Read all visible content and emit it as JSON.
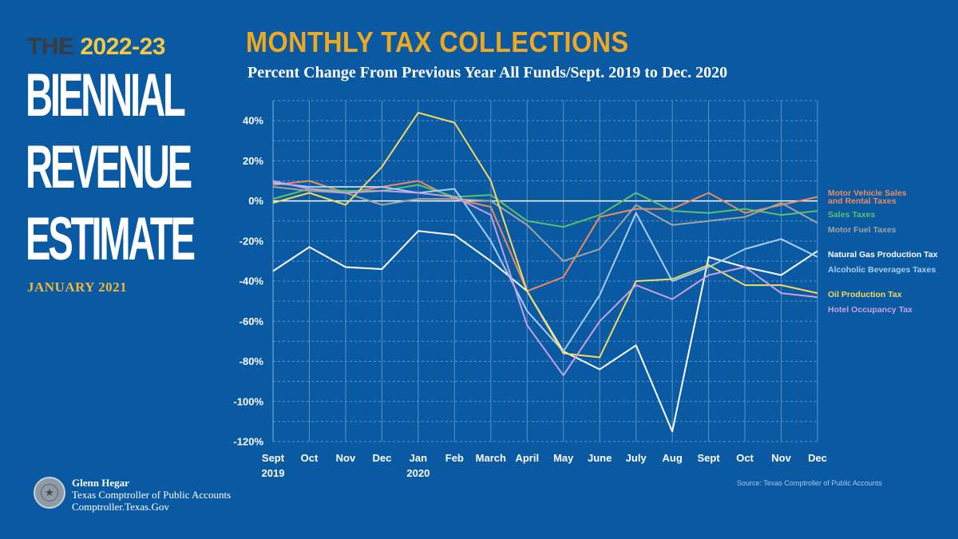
{
  "branding": {
    "the": "THE",
    "years": "2022-23",
    "lines": [
      "BIENNIAL",
      "REVENUE",
      "ESTIMATE"
    ],
    "date": "JANUARY 2021",
    "colors": {
      "years": "#f5c842",
      "date": "#f0b83a",
      "background": "#0a5aa3"
    }
  },
  "footer": {
    "name": "Glenn Hegar",
    "office": "Texas Comptroller of Public Accounts",
    "website": "Comptroller.Texas.Gov",
    "seal_icon": "texas-seal-icon"
  },
  "source": "Source: Texas Comptroller of Public Accounts",
  "chart_data": {
    "type": "line",
    "title": "MONTHLY TAX COLLECTIONS",
    "subtitle": "Percent Change From Previous Year All Funds/Sept. 2019 to Dec. 2020",
    "xlabel": "",
    "ylabel": "",
    "categories": [
      "Sept",
      "Oct",
      "Nov",
      "Dec",
      "Jan",
      "Feb",
      "March",
      "April",
      "May",
      "June",
      "July",
      "Aug",
      "Sept",
      "Oct",
      "Nov",
      "Dec"
    ],
    "year_labels": [
      {
        "index": 0,
        "label": "2019"
      },
      {
        "index": 4,
        "label": "2020"
      }
    ],
    "ylim": [
      -120,
      50
    ],
    "yticks": [
      40,
      20,
      0,
      -20,
      -40,
      -60,
      -80,
      -100,
      -120
    ],
    "ytick_labels": [
      "40%",
      "20%",
      "0%",
      "-20%",
      "-40%",
      "-60%",
      "-80%",
      "-100%",
      "-120%"
    ],
    "grid": true,
    "legend": "right",
    "series": [
      {
        "name": "Motor Vehicle Sales",
        "name2": "and Rental Taxes",
        "color": "#f08a5d",
        "values": [
          8,
          10,
          4,
          7,
          10,
          1,
          -3,
          -45,
          -38,
          -8,
          -4,
          -4,
          4,
          -6,
          -2,
          2
        ]
      },
      {
        "name": "Sales Taxes",
        "color": "#5fbf6a",
        "values": [
          1,
          6,
          5,
          5,
          8,
          2,
          3,
          -10,
          -13,
          -7,
          4,
          -5,
          -6,
          -4,
          -7,
          -5
        ]
      },
      {
        "name": "Motor Fuel Taxes",
        "color": "#a3a3a3",
        "values": [
          7,
          5,
          4,
          -2,
          1,
          1,
          0,
          -12,
          -30,
          -24,
          -2,
          -12,
          -10,
          -8,
          -1,
          -11
        ]
      },
      {
        "name": "Natural Gas Production Tax",
        "color": "#ffffff",
        "values": [
          -35,
          -23,
          -33,
          -34,
          -15,
          -17,
          -30,
          -45,
          -75,
          -84,
          -72,
          -115,
          -28,
          -33,
          -37,
          -25
        ]
      },
      {
        "name": "Alcoholic Beverages Taxes",
        "color": "#a8cdf2",
        "values": [
          9,
          7,
          7,
          7,
          4,
          6,
          -20,
          -55,
          -75,
          -47,
          -6,
          -40,
          -33,
          -24,
          -19,
          -28
        ]
      },
      {
        "name": "Oil Production Tax",
        "color": "#f5d860",
        "values": [
          -1,
          4,
          -2,
          17,
          44,
          39,
          10,
          -45,
          -76,
          -78,
          -40,
          -39,
          -32,
          -42,
          -42,
          -46
        ]
      },
      {
        "name": "Hotel Occupancy Tax",
        "color": "#c9a0dc",
        "values": [
          10,
          6,
          4,
          5,
          4,
          2,
          -7,
          -62,
          -87,
          -60,
          -42,
          -49,
          -37,
          -33,
          -46,
          -48
        ]
      }
    ]
  }
}
